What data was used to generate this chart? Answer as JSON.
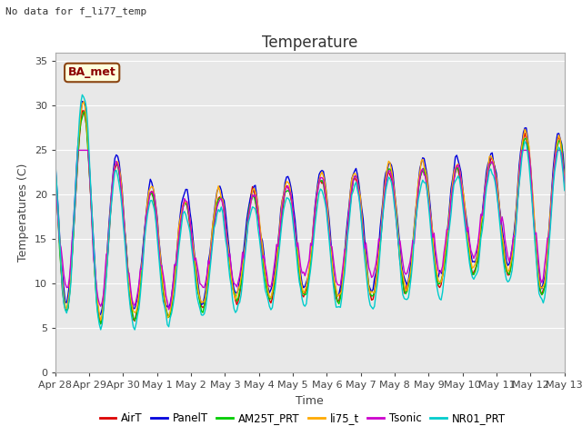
{
  "title": "Temperature",
  "ylabel": "Temperatures (C)",
  "xlabel": "Time",
  "no_data_label": "No data for f_li77_temp",
  "ba_met_label": "BA_met",
  "ylim": [
    0,
    36
  ],
  "yticks": [
    0,
    5,
    10,
    15,
    20,
    25,
    30,
    35
  ],
  "background_color": "#ffffff",
  "plot_bg_color": "#e8e8e8",
  "series": [
    {
      "name": "AirT",
      "color": "#dd0000",
      "lw": 1.0
    },
    {
      "name": "PanelT",
      "color": "#0000dd",
      "lw": 1.0
    },
    {
      "name": "AM25T_PRT",
      "color": "#00cc00",
      "lw": 1.0
    },
    {
      "name": "li75_t",
      "color": "#ffaa00",
      "lw": 1.0
    },
    {
      "name": "Tsonic",
      "color": "#cc00cc",
      "lw": 1.0
    },
    {
      "name": "NR01_PRT",
      "color": "#00cccc",
      "lw": 1.0
    }
  ],
  "xtick_labels": [
    "Apr 28",
    "Apr 29",
    "Apr 30",
    "May 1",
    "May 2",
    "May 3",
    "May 4",
    "May 5",
    "May 6",
    "May 7",
    "May 8",
    "May 9",
    "May 10",
    "May 11",
    "May 12",
    "May 13"
  ],
  "num_days": 15,
  "seed": 42
}
